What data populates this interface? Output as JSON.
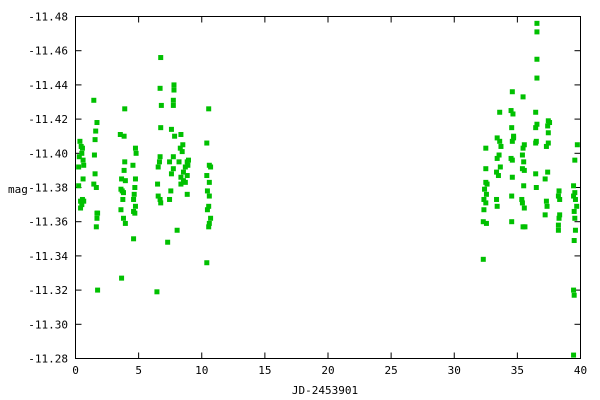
{
  "chart_data": {
    "type": "scatter",
    "title": "",
    "xlabel": "JD-2453901",
    "ylabel": "mag",
    "xlim": [
      0,
      40
    ],
    "ylim": [
      -11.28,
      -11.48
    ],
    "y_inverted": true,
    "grid": false,
    "x_ticks": [
      "0",
      "5",
      "10",
      "15",
      "20",
      "25",
      "30",
      "35",
      "40"
    ],
    "y_ticks": [
      "-11.48",
      "-11.46",
      "-11.44",
      "-11.42",
      "-11.40",
      "-11.38",
      "-11.36",
      "-11.34",
      "-11.32",
      "-11.30",
      "-11.28"
    ],
    "marker_color": "#00c000",
    "points": [
      [
        0.35,
        -11.407
      ],
      [
        0.45,
        -11.404
      ],
      [
        0.55,
        -11.403
      ],
      [
        0.5,
        -11.4
      ],
      [
        0.3,
        -11.398
      ],
      [
        0.6,
        -11.396
      ],
      [
        0.65,
        -11.393
      ],
      [
        0.25,
        -11.392
      ],
      [
        0.6,
        -11.385
      ],
      [
        0.25,
        -11.381
      ],
      [
        0.55,
        -11.373
      ],
      [
        0.4,
        -11.372
      ],
      [
        0.65,
        -11.372
      ],
      [
        0.5,
        -11.37
      ],
      [
        0.4,
        -11.368
      ],
      [
        1.45,
        -11.431
      ],
      [
        1.7,
        -11.418
      ],
      [
        1.6,
        -11.413
      ],
      [
        1.55,
        -11.408
      ],
      [
        1.5,
        -11.399
      ],
      [
        1.55,
        -11.388
      ],
      [
        1.45,
        -11.382
      ],
      [
        1.65,
        -11.38
      ],
      [
        1.75,
        -11.365
      ],
      [
        1.7,
        -11.365
      ],
      [
        1.7,
        -11.362
      ],
      [
        1.65,
        -11.357
      ],
      [
        1.75,
        -11.32
      ],
      [
        3.9,
        -11.426
      ],
      [
        3.55,
        -11.411
      ],
      [
        3.85,
        -11.41
      ],
      [
        3.9,
        -11.395
      ],
      [
        3.85,
        -11.39
      ],
      [
        3.65,
        -11.385
      ],
      [
        3.95,
        -11.384
      ],
      [
        3.6,
        -11.379
      ],
      [
        3.7,
        -11.378
      ],
      [
        3.8,
        -11.377
      ],
      [
        3.75,
        -11.373
      ],
      [
        3.6,
        -11.367
      ],
      [
        3.8,
        -11.362
      ],
      [
        3.95,
        -11.359
      ],
      [
        3.65,
        -11.327
      ],
      [
        4.75,
        -11.403
      ],
      [
        4.8,
        -11.4
      ],
      [
        4.55,
        -11.393
      ],
      [
        4.75,
        -11.385
      ],
      [
        4.7,
        -11.38
      ],
      [
        4.65,
        -11.376
      ],
      [
        4.6,
        -11.373
      ],
      [
        4.75,
        -11.369
      ],
      [
        4.6,
        -11.366
      ],
      [
        4.7,
        -11.365
      ],
      [
        4.6,
        -11.35
      ],
      [
        6.75,
        -11.456
      ],
      [
        6.7,
        -11.438
      ],
      [
        6.8,
        -11.428
      ],
      [
        6.75,
        -11.415
      ],
      [
        6.7,
        -11.398
      ],
      [
        6.65,
        -11.395
      ],
      [
        6.55,
        -11.392
      ],
      [
        6.5,
        -11.382
      ],
      [
        6.55,
        -11.375
      ],
      [
        6.7,
        -11.373
      ],
      [
        6.75,
        -11.371
      ],
      [
        6.45,
        -11.319
      ],
      [
        7.8,
        -11.44
      ],
      [
        7.8,
        -11.437
      ],
      [
        7.75,
        -11.431
      ],
      [
        7.75,
        -11.428
      ],
      [
        7.6,
        -11.414
      ],
      [
        7.85,
        -11.41
      ],
      [
        7.75,
        -11.398
      ],
      [
        7.45,
        -11.395
      ],
      [
        7.75,
        -11.391
      ],
      [
        7.6,
        -11.388
      ],
      [
        7.55,
        -11.378
      ],
      [
        7.45,
        -11.373
      ],
      [
        7.3,
        -11.348
      ],
      [
        8.35,
        -11.411
      ],
      [
        8.5,
        -11.405
      ],
      [
        8.3,
        -11.403
      ],
      [
        8.45,
        -11.401
      ],
      [
        8.2,
        -11.395
      ],
      [
        8.55,
        -11.389
      ],
      [
        8.35,
        -11.386
      ],
      [
        8.55,
        -11.384
      ],
      [
        8.35,
        -11.382
      ],
      [
        8.05,
        -11.355
      ],
      [
        8.95,
        -11.396
      ],
      [
        8.85,
        -11.395
      ],
      [
        8.9,
        -11.393
      ],
      [
        8.7,
        -11.392
      ],
      [
        8.85,
        -11.387
      ],
      [
        8.7,
        -11.383
      ],
      [
        8.85,
        -11.376
      ],
      [
        10.55,
        -11.426
      ],
      [
        10.4,
        -11.406
      ],
      [
        10.6,
        -11.393
      ],
      [
        10.7,
        -11.392
      ],
      [
        10.4,
        -11.387
      ],
      [
        10.6,
        -11.383
      ],
      [
        10.45,
        -11.378
      ],
      [
        10.6,
        -11.375
      ],
      [
        10.55,
        -11.369
      ],
      [
        10.45,
        -11.367
      ],
      [
        10.7,
        -11.362
      ],
      [
        10.6,
        -11.359
      ],
      [
        10.55,
        -11.357
      ],
      [
        10.4,
        -11.336
      ],
      [
        32.5,
        -11.403
      ],
      [
        32.5,
        -11.391
      ],
      [
        32.5,
        -11.383
      ],
      [
        32.6,
        -11.382
      ],
      [
        32.4,
        -11.379
      ],
      [
        32.55,
        -11.376
      ],
      [
        32.35,
        -11.373
      ],
      [
        32.5,
        -11.371
      ],
      [
        32.35,
        -11.367
      ],
      [
        32.3,
        -11.36
      ],
      [
        32.55,
        -11.359
      ],
      [
        32.3,
        -11.338
      ],
      [
        33.6,
        -11.424
      ],
      [
        33.4,
        -11.409
      ],
      [
        33.6,
        -11.407
      ],
      [
        33.7,
        -11.404
      ],
      [
        33.55,
        -11.399
      ],
      [
        33.4,
        -11.397
      ],
      [
        33.65,
        -11.392
      ],
      [
        33.35,
        -11.389
      ],
      [
        33.5,
        -11.387
      ],
      [
        33.35,
        -11.373
      ],
      [
        33.4,
        -11.369
      ],
      [
        34.6,
        -11.436
      ],
      [
        34.5,
        -11.425
      ],
      [
        34.65,
        -11.423
      ],
      [
        34.55,
        -11.415
      ],
      [
        34.7,
        -11.41
      ],
      [
        34.7,
        -11.409
      ],
      [
        34.6,
        -11.407
      ],
      [
        34.5,
        -11.397
      ],
      [
        34.6,
        -11.396
      ],
      [
        34.6,
        -11.386
      ],
      [
        34.55,
        -11.375
      ],
      [
        34.55,
        -11.36
      ],
      [
        35.45,
        -11.433
      ],
      [
        35.55,
        -11.405
      ],
      [
        35.45,
        -11.403
      ],
      [
        35.4,
        -11.399
      ],
      [
        35.5,
        -11.395
      ],
      [
        35.4,
        -11.391
      ],
      [
        35.55,
        -11.39
      ],
      [
        35.5,
        -11.381
      ],
      [
        35.35,
        -11.373
      ],
      [
        35.4,
        -11.371
      ],
      [
        35.55,
        -11.368
      ],
      [
        35.45,
        -11.357
      ],
      [
        35.6,
        -11.357
      ],
      [
        36.55,
        -11.476
      ],
      [
        36.55,
        -11.471
      ],
      [
        36.55,
        -11.455
      ],
      [
        36.55,
        -11.444
      ],
      [
        36.45,
        -11.424
      ],
      [
        36.55,
        -11.417
      ],
      [
        36.45,
        -11.415
      ],
      [
        36.5,
        -11.407
      ],
      [
        36.45,
        -11.406
      ],
      [
        36.45,
        -11.388
      ],
      [
        36.5,
        -11.38
      ],
      [
        37.45,
        -11.419
      ],
      [
        37.55,
        -11.418
      ],
      [
        37.4,
        -11.416
      ],
      [
        37.45,
        -11.412
      ],
      [
        37.45,
        -11.406
      ],
      [
        37.3,
        -11.404
      ],
      [
        37.4,
        -11.389
      ],
      [
        37.2,
        -11.385
      ],
      [
        37.3,
        -11.372
      ],
      [
        37.35,
        -11.369
      ],
      [
        37.2,
        -11.364
      ],
      [
        38.3,
        -11.378
      ],
      [
        38.25,
        -11.375
      ],
      [
        38.35,
        -11.373
      ],
      [
        38.35,
        -11.364
      ],
      [
        38.3,
        -11.362
      ],
      [
        38.25,
        -11.358
      ],
      [
        38.25,
        -11.355
      ],
      [
        39.75,
        -11.405
      ],
      [
        39.55,
        -11.396
      ],
      [
        39.45,
        -11.381
      ],
      [
        39.55,
        -11.377
      ],
      [
        39.45,
        -11.375
      ],
      [
        39.6,
        -11.373
      ],
      [
        39.7,
        -11.369
      ],
      [
        39.5,
        -11.366
      ],
      [
        39.55,
        -11.362
      ],
      [
        39.6,
        -11.355
      ],
      [
        39.5,
        -11.349
      ],
      [
        39.45,
        -11.32
      ],
      [
        39.5,
        -11.317
      ],
      [
        39.45,
        -11.282
      ]
    ]
  }
}
